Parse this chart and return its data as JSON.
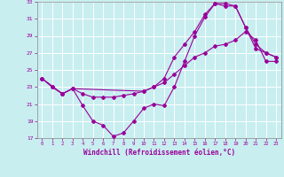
{
  "xlabel": "Windchill (Refroidissement éolien,°C)",
  "background_color": "#c8eef0",
  "line_color": "#990099",
  "grid_color": "#ffffff",
  "xlim": [
    -0.5,
    23.5
  ],
  "ylim": [
    17,
    33
  ],
  "xticks": [
    0,
    1,
    2,
    3,
    4,
    5,
    6,
    7,
    8,
    9,
    10,
    11,
    12,
    13,
    14,
    15,
    16,
    17,
    18,
    19,
    20,
    21,
    22,
    23
  ],
  "yticks": [
    17,
    19,
    21,
    23,
    25,
    27,
    29,
    31,
    33
  ],
  "series1_x": [
    0,
    1,
    2,
    3,
    4,
    5,
    6,
    7,
    8,
    9,
    10,
    11,
    12,
    13,
    14,
    15,
    16,
    17,
    18,
    19,
    20,
    21,
    22,
    23
  ],
  "series1_y": [
    24.0,
    23.0,
    22.2,
    22.8,
    20.8,
    19.0,
    18.5,
    17.2,
    17.6,
    19.0,
    20.5,
    21.0,
    20.8,
    23.0,
    26.0,
    29.0,
    31.2,
    32.8,
    32.8,
    32.5,
    30.0,
    27.5,
    27.0,
    26.5
  ],
  "series2_x": [
    0,
    2,
    3,
    10,
    11,
    12,
    13,
    14,
    15,
    16,
    17,
    18,
    19,
    20,
    21,
    22,
    23
  ],
  "series2_y": [
    24.0,
    22.2,
    22.8,
    22.5,
    23.0,
    24.0,
    26.5,
    28.0,
    29.5,
    31.5,
    32.8,
    32.5,
    32.5,
    30.0,
    28.0,
    27.0,
    26.5
  ],
  "series3_x": [
    0,
    1,
    2,
    3,
    4,
    5,
    6,
    7,
    8,
    9,
    10,
    11,
    12,
    13,
    14,
    15,
    16,
    17,
    18,
    19,
    20,
    21,
    22,
    23
  ],
  "series3_y": [
    24.0,
    23.0,
    22.2,
    22.8,
    22.2,
    21.8,
    21.8,
    21.8,
    22.0,
    22.2,
    22.5,
    23.0,
    23.5,
    24.5,
    25.5,
    26.5,
    27.0,
    27.8,
    28.0,
    28.5,
    29.5,
    28.5,
    26.0,
    26.0
  ]
}
